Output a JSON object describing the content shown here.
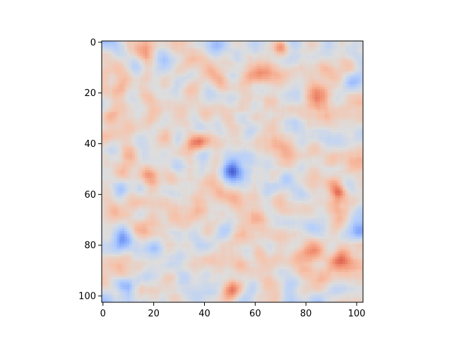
{
  "chart_data": {
    "type": "heatmap",
    "title": "",
    "xlabel": "",
    "ylabel": "",
    "colormap": "coolwarm",
    "grid": false,
    "legend": "none",
    "shape": [
      103,
      103
    ],
    "xlim": [
      -0.5,
      102.5
    ],
    "ylim": [
      102.5,
      -0.5
    ],
    "xticks": [
      0,
      20,
      40,
      60,
      80,
      100
    ],
    "yticks": [
      0,
      20,
      40,
      60,
      80,
      100
    ],
    "xtick_labels": [
      "0",
      "20",
      "40",
      "60",
      "80",
      "100"
    ],
    "ytick_labels": [
      "0",
      "20",
      "40",
      "60",
      "80",
      "100"
    ],
    "value_range": [
      0,
      1
    ],
    "background_level": 0.52,
    "features": [
      {
        "x": 51,
        "y": 51,
        "sigma": 2.6,
        "amplitude": -0.45
      },
      {
        "x": 43,
        "y": 20,
        "sigma": 2.5,
        "amplitude": -0.18
      },
      {
        "x": 28,
        "y": 18,
        "sigma": 3.0,
        "amplitude": -0.1
      },
      {
        "x": 7,
        "y": 58,
        "sigma": 2.4,
        "amplitude": -0.2
      },
      {
        "x": 8,
        "y": 77,
        "sigma": 3.0,
        "amplitude": -0.17
      },
      {
        "x": 9,
        "y": 95,
        "sigma": 2.6,
        "amplitude": -0.2
      },
      {
        "x": 101,
        "y": 75,
        "sigma": 2.4,
        "amplitude": -0.23
      },
      {
        "x": 101,
        "y": 15,
        "sigma": 2.8,
        "amplitude": -0.17
      },
      {
        "x": 44,
        "y": 2,
        "sigma": 3.2,
        "amplitude": -0.14
      },
      {
        "x": 65,
        "y": 56,
        "sigma": 3.0,
        "amplitude": -0.09
      },
      {
        "x": 93,
        "y": 59,
        "sigma": 2.3,
        "amplitude": 0.3
      },
      {
        "x": 94,
        "y": 86,
        "sigma": 3.6,
        "amplitude": 0.28
      },
      {
        "x": 85,
        "y": 22,
        "sigma": 4.0,
        "amplitude": 0.22
      },
      {
        "x": 70,
        "y": 2,
        "sigma": 2.0,
        "amplitude": 0.24
      },
      {
        "x": 62,
        "y": 13,
        "sigma": 3.2,
        "amplitude": 0.2
      },
      {
        "x": 18,
        "y": 52,
        "sigma": 3.2,
        "amplitude": 0.2
      },
      {
        "x": 37,
        "y": 39,
        "sigma": 3.0,
        "amplitude": 0.18
      },
      {
        "x": 17,
        "y": 5,
        "sigma": 3.2,
        "amplitude": 0.18
      },
      {
        "x": 62,
        "y": 70,
        "sigma": 3.5,
        "amplitude": 0.18
      },
      {
        "x": 51,
        "y": 98,
        "sigma": 3.0,
        "amplitude": 0.22
      },
      {
        "x": 76,
        "y": 64,
        "sigma": 2.5,
        "amplitude": 0.12
      },
      {
        "x": 2,
        "y": 30,
        "sigma": 2.4,
        "amplitude": 0.16
      },
      {
        "x": 20,
        "y": 70,
        "sigma": 3.0,
        "amplitude": 0.14
      }
    ]
  }
}
